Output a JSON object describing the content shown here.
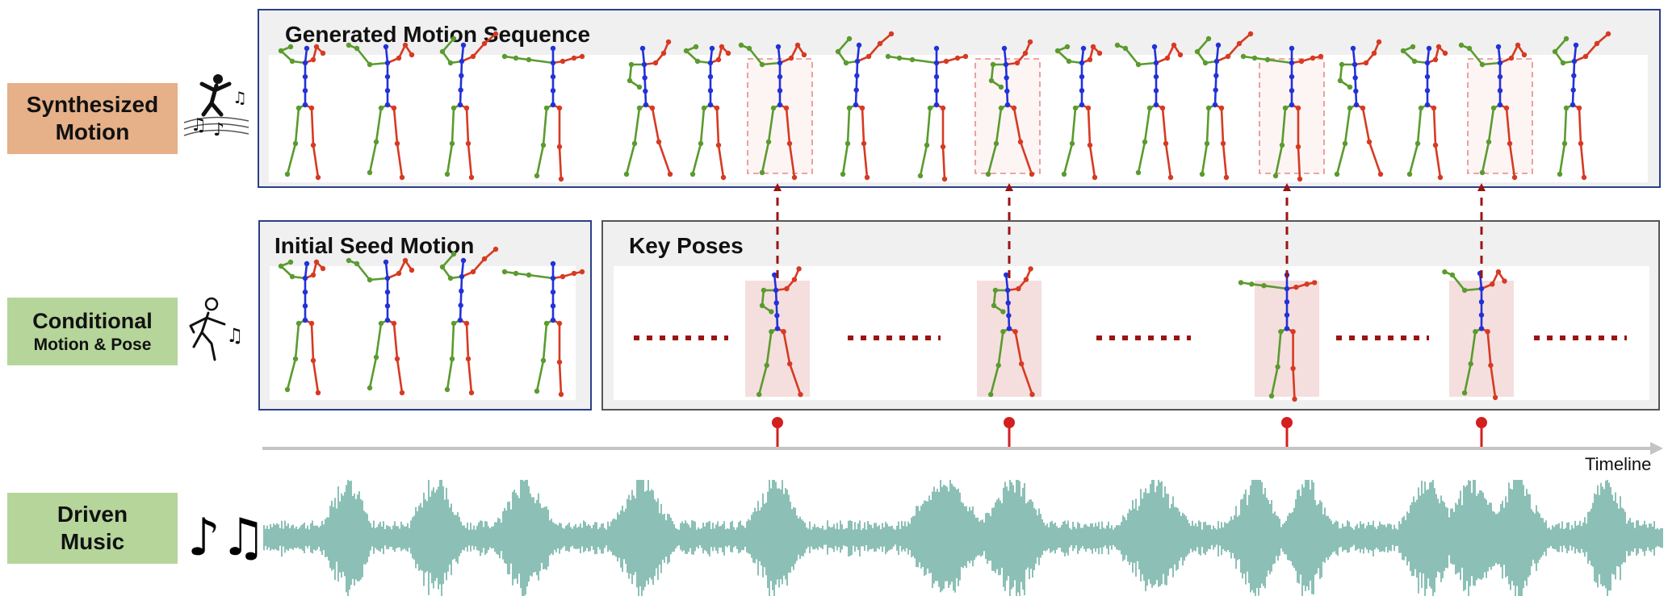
{
  "labels": {
    "synth": "Synthesized\nMotion",
    "cond_line1": "Conditional",
    "cond_line2": "Motion & Pose",
    "music": "Driven\nMusic"
  },
  "panels": {
    "generated_title": "Generated Motion Sequence",
    "seed_title": "Initial Seed Motion",
    "key_title": "Key Poses"
  },
  "timeline_label": "Timeline",
  "icons": [
    "dancing-person-with-notes-icon",
    "dancing-outline-person-icon",
    "music-notes-icon"
  ],
  "colors": {
    "panel_blue": "#2b3f86",
    "panel_grey": "#555555",
    "arrow_red": "#9b1313",
    "marker_red": "#d41f1f",
    "highlight_pink": "#f5dede",
    "skeleton_left": "#5a9b2e",
    "skeleton_right": "#d63a22",
    "skeleton_spine": "#2231d8",
    "waveform": "#6fb1a4",
    "label_orange": "#e6b088",
    "label_green": "#b5d59a"
  },
  "key_pose_count": 4,
  "generated_frame_count": 17,
  "seed_frame_count": 4
}
